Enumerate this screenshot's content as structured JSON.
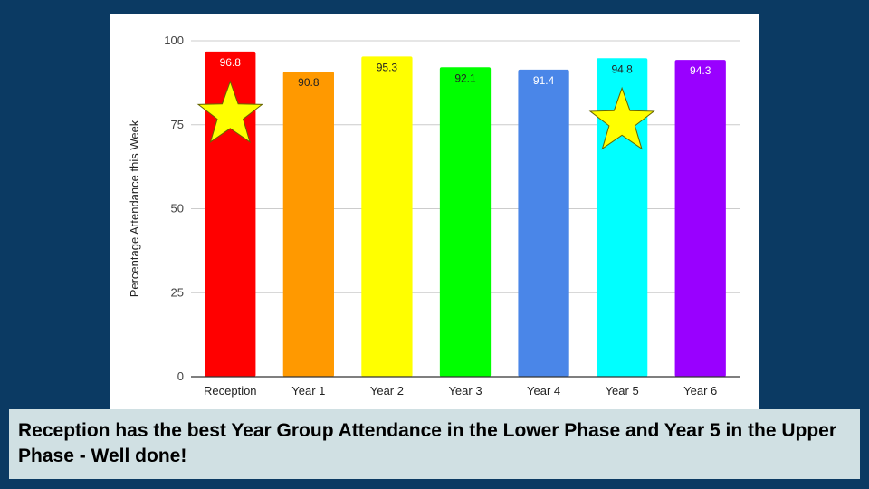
{
  "chart_data": {
    "type": "bar",
    "categories": [
      "Reception",
      "Year 1",
      "Year 2",
      "Year 3",
      "Year 4",
      "Year 5",
      "Year 6"
    ],
    "values": [
      96.8,
      90.8,
      95.3,
      92.1,
      91.4,
      94.8,
      94.3
    ],
    "data_labels": [
      "96.8",
      "90.8",
      "95.3",
      "92.1",
      "91.4",
      "94.8",
      "94.3"
    ],
    "bar_colors": [
      "#ff0000",
      "#ff9900",
      "#ffff00",
      "#00ff00",
      "#4a86e8",
      "#00ffff",
      "#9900ff"
    ],
    "label_colors": [
      "#ffffff",
      "#222222",
      "#222222",
      "#222222",
      "#ffffff",
      "#222222",
      "#ffffff"
    ],
    "starred": [
      "Reception",
      "Year 5"
    ],
    "star_color": "#ffff00",
    "title": "",
    "xlabel": "",
    "ylabel": "Percentage Attendance this Week",
    "ylim": [
      0,
      100
    ],
    "yticks": [
      0,
      25,
      50,
      75,
      100
    ],
    "grid": true,
    "legend": "none"
  },
  "caption": {
    "text": "Reception has the best Year Group Attendance in the Lower Phase and Year 5 in the Upper Phase - Well done!"
  },
  "colors": {
    "background": "#0b3a63",
    "caption_background": "#d0e0e3"
  }
}
